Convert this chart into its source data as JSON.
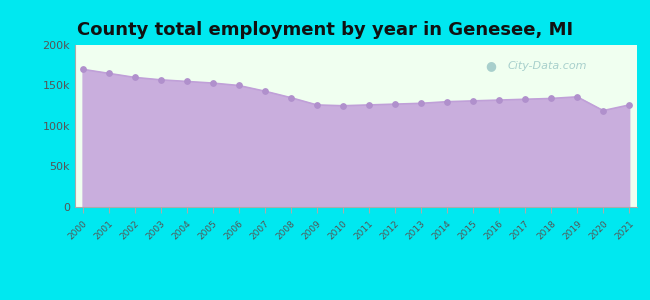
{
  "title": "County total employment by year in Genesee, MI",
  "years": [
    2000,
    2001,
    2002,
    2003,
    2004,
    2005,
    2006,
    2007,
    2008,
    2009,
    2010,
    2011,
    2012,
    2013,
    2014,
    2015,
    2016,
    2017,
    2018,
    2019,
    2020,
    2021
  ],
  "values": [
    170000,
    165000,
    160000,
    157000,
    155000,
    153000,
    150000,
    143000,
    135000,
    126000,
    125000,
    126000,
    127000,
    128000,
    130000,
    131000,
    132000,
    133000,
    134000,
    136000,
    119000,
    126000
  ],
  "line_color": "#c0a0d8",
  "fill_color": "#c9aedd",
  "marker_color": "#b090cc",
  "background_color": "#00e8f0",
  "plot_bg_top": "#f0fff0",
  "plot_bg_bottom": "#f8f8ff",
  "ylim": [
    0,
    200000
  ],
  "yticks": [
    0,
    50000,
    100000,
    150000,
    200000
  ],
  "ytick_labels": [
    "0",
    "50k",
    "100k",
    "150k",
    "200k"
  ],
  "title_fontsize": 13,
  "watermark": "City-Data.com",
  "tick_color": "#555555"
}
